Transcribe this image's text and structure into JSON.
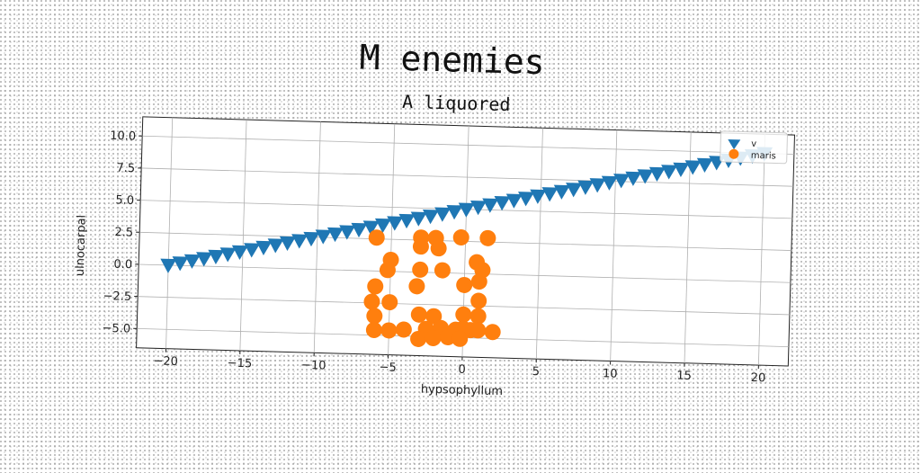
{
  "chart_data": {
    "type": "scatter",
    "title": "M enemies",
    "subtitle": "A liquored",
    "xlabel": "hypsophyllum",
    "ylabel": "ulnocarpal",
    "xlim": [
      -22,
      22
    ],
    "ylim": [
      -6.5,
      11.5
    ],
    "xticks": [
      -20,
      -15,
      -10,
      -5,
      0,
      5,
      10,
      15,
      20
    ],
    "xtick_labels": [
      "−20",
      "−15",
      "−10",
      "−5",
      "0",
      "5",
      "10",
      "15",
      "20"
    ],
    "yticks": [
      -5.0,
      -2.5,
      0.0,
      2.5,
      5.0,
      7.5,
      10.0
    ],
    "ytick_labels": [
      "−5.0",
      "−2.5",
      "0.0",
      "2.5",
      "5.0",
      "7.5",
      "10.0"
    ],
    "grid": true,
    "legend_position": "top-right",
    "series": [
      {
        "name": "v",
        "marker": "triangle-down",
        "color": "#1f77b4",
        "x": [
          -20.0,
          -19.2,
          -18.4,
          -17.6,
          -16.8,
          -16.0,
          -15.2,
          -14.4,
          -13.6,
          -12.8,
          -12.0,
          -11.2,
          -10.4,
          -9.6,
          -8.8,
          -8.0,
          -7.2,
          -6.4,
          -5.6,
          -4.8,
          -4.0,
          -3.2,
          -2.4,
          -1.6,
          -0.8,
          0.0,
          0.8,
          1.6,
          2.4,
          3.2,
          4.0,
          4.8,
          5.6,
          6.4,
          7.2,
          8.0,
          8.8,
          9.6,
          10.4,
          11.2,
          12.0,
          12.8,
          13.6,
          14.4,
          15.2,
          16.0,
          16.8,
          17.6,
          18.4,
          19.2,
          20.0
        ],
        "y": [
          0.0,
          0.2,
          0.4,
          0.6,
          0.8,
          1.0,
          1.2,
          1.4,
          1.6,
          1.8,
          2.0,
          2.2,
          2.4,
          2.6,
          2.8,
          3.0,
          3.2,
          3.4,
          3.6,
          3.8,
          4.0,
          4.2,
          4.4,
          4.6,
          4.8,
          5.0,
          5.2,
          5.4,
          5.6,
          5.8,
          6.0,
          6.2,
          6.4,
          6.6,
          6.8,
          7.0,
          7.2,
          7.4,
          7.6,
          7.8,
          8.0,
          8.2,
          8.4,
          8.6,
          8.8,
          9.0,
          9.2,
          9.4,
          9.6,
          9.8,
          10.0
        ]
      },
      {
        "name": "maris",
        "marker": "circle",
        "color": "#ff7f0e",
        "x": [
          -6.0,
          -3.0,
          -2.0,
          -0.3,
          1.5,
          -5.0,
          -3.0,
          -1.8,
          0.8,
          -5.2,
          -3.0,
          -1.5,
          1.2,
          -6.0,
          -3.2,
          0.0,
          1.0,
          -6.2,
          -5.0,
          1.0,
          -6.0,
          -3.0,
          -2.0,
          0.0,
          1.0,
          -6.0,
          -5.0,
          -4.0,
          -2.5,
          -1.5,
          -0.5,
          0.0,
          0.5,
          1.0,
          2.0,
          -3.0,
          -2.0,
          -1.0,
          -0.2
        ],
        "y": [
          2.6,
          2.7,
          2.7,
          2.8,
          2.8,
          0.9,
          2.0,
          1.9,
          0.9,
          0.1,
          0.2,
          0.2,
          0.3,
          -1.2,
          -1.1,
          -0.9,
          -0.6,
          -2.4,
          -2.4,
          -2.1,
          -3.5,
          -3.3,
          -3.4,
          -3.2,
          -3.3,
          -4.6,
          -4.6,
          -4.5,
          -4.4,
          -4.3,
          -4.4,
          -4.3,
          -4.4,
          -4.4,
          -4.5,
          -5.2,
          -5.1,
          -5.0,
          -5.1
        ]
      }
    ]
  }
}
